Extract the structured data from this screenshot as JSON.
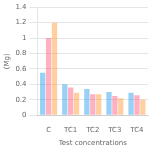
{
  "chart_data": {
    "type": "bar",
    "categories": [
      "C",
      "TC1",
      "TC2",
      "TC3",
      "TC4"
    ],
    "series": [
      {
        "values": [
          0.55,
          0.4,
          0.34,
          0.3,
          0.29
        ]
      },
      {
        "values": [
          1.0,
          0.36,
          0.27,
          0.25,
          0.26
        ]
      },
      {
        "values": [
          1.2,
          0.29,
          0.27,
          0.22,
          0.2
        ]
      }
    ],
    "xlabel": "Test concentrations",
    "ylabel": "(Mg)",
    "ylim": [
      0,
      1.4
    ],
    "yticks": [
      0,
      0.2,
      0.4,
      0.6,
      0.8,
      1.0,
      1.2,
      1.4
    ],
    "grid": true
  }
}
